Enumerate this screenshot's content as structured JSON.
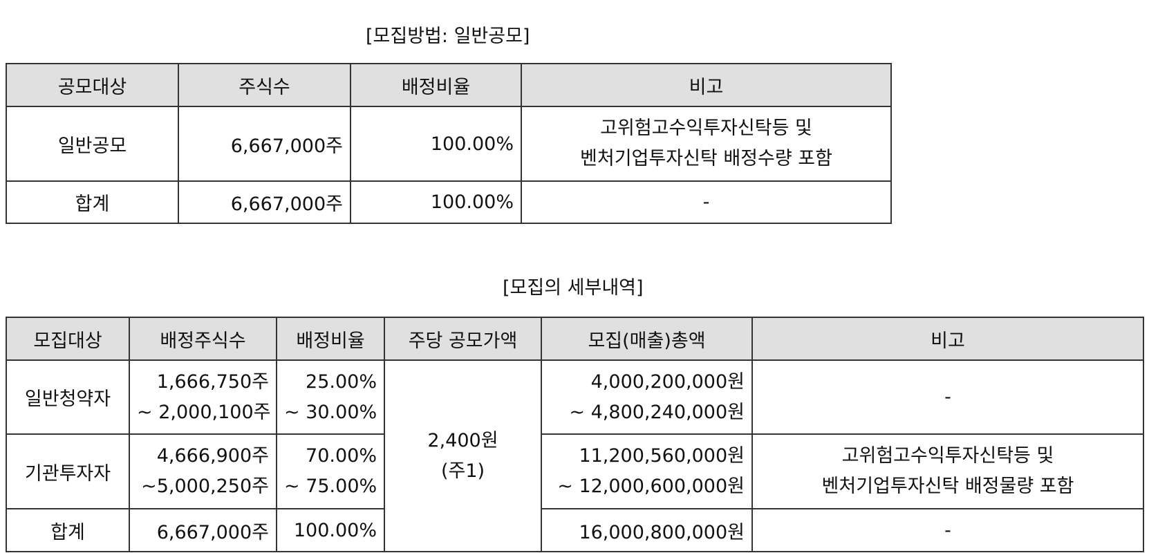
{
  "section1": {
    "caption": "[모집방법: 일반공모]",
    "headers": [
      "공모대상",
      "주식수",
      "배정비율",
      "비고"
    ],
    "rows": [
      {
        "target": "일반공모",
        "shares": "6,667,000주",
        "ratio": "100.00%",
        "note_line1": "고위험고수익투자신탁등 및",
        "note_line2": "벤처기업투자신탁 배정수량 포함"
      },
      {
        "target": "합계",
        "shares": "6,667,000주",
        "ratio": "100.00%",
        "note": "-"
      }
    ]
  },
  "section2": {
    "caption": "[모집의 세부내역]",
    "headers": [
      "모집대상",
      "배정주식수",
      "배정비율",
      "주당 공모가액",
      "모집(매출)총액",
      "비고"
    ],
    "price_line1": "2,400원",
    "price_line2": "(주1)",
    "rows": [
      {
        "target": "일반청약자",
        "shares_line1": "1,666,750주",
        "shares_line2": "~ 2,000,100주",
        "ratio_line1": "25.00%",
        "ratio_line2": "~ 30.00%",
        "amount_line1": "4,000,200,000원",
        "amount_line2": "~ 4,800,240,000원",
        "note": "-"
      },
      {
        "target": "기관투자자",
        "shares_line1": "4,666,900주",
        "shares_line2": "~5,000,250주",
        "ratio_line1": "70.00%",
        "ratio_line2": "~ 75.00%",
        "amount_line1": "11,200,560,000원",
        "amount_line2": "~ 12,000,600,000원",
        "note_line1": "고위험고수익투자신탁등 및",
        "note_line2": "벤처기업투자신탁 배정물량 포함"
      },
      {
        "target": "합계",
        "shares": "6,667,000주",
        "ratio": "100.00%",
        "amount": "16,000,800,000원",
        "note": "-"
      }
    ]
  }
}
